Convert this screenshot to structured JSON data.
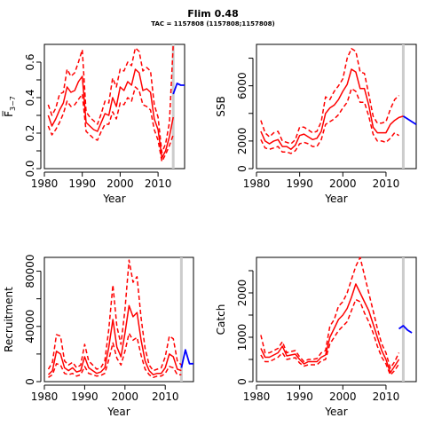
{
  "figure": {
    "title": "Flim 0.48",
    "subtitle": "TAC = 1157808 (1157808;1157808)"
  },
  "colors": {
    "estimate": "#ff0000",
    "forecast": "#0000ff",
    "marker": "#cccccc",
    "axis": "#000000"
  },
  "chart_data": [
    {
      "id": "fbar",
      "type": "line",
      "xlabel": "Year",
      "ylabel": "F̅",
      "ylabel_sub": "3−7",
      "xlim": [
        1980,
        2017
      ],
      "ylim": [
        0,
        0.7
      ],
      "xticks": [
        1980,
        1990,
        2000,
        2010
      ],
      "yticks": [
        0.0,
        0.2,
        0.4,
        0.6
      ],
      "yticklabels": [
        "0.0",
        "0.2",
        "0.4",
        "0.6"
      ],
      "yminor": [
        0.1,
        0.3,
        0.5
      ],
      "marker_x": 2014,
      "series": [
        {
          "role": "estimate",
          "style": "solid",
          "x": [
            1981,
            1982,
            1983,
            1984,
            1985,
            1986,
            1987,
            1988,
            1989,
            1990,
            1991,
            1992,
            1993,
            1994,
            1995,
            1996,
            1997,
            1998,
            1999,
            2000,
            2001,
            2002,
            2003,
            2004,
            2005,
            2006,
            2007,
            2008,
            2009,
            2010,
            2011,
            2012,
            2013,
            2014
          ],
          "y": [
            0.3,
            0.24,
            0.28,
            0.33,
            0.37,
            0.46,
            0.43,
            0.44,
            0.49,
            0.52,
            0.26,
            0.24,
            0.22,
            0.21,
            0.26,
            0.31,
            0.3,
            0.4,
            0.35,
            0.46,
            0.44,
            0.49,
            0.47,
            0.56,
            0.54,
            0.44,
            0.45,
            0.43,
            0.28,
            0.22,
            0.06,
            0.1,
            0.18,
            0.29
          ]
        },
        {
          "role": "upper",
          "style": "dashed",
          "x": [
            1981,
            1982,
            1983,
            1984,
            1985,
            1986,
            1987,
            1988,
            1989,
            1990,
            1991,
            1992,
            1993,
            1994,
            1995,
            1996,
            1997,
            1998,
            1999,
            2000,
            2001,
            2002,
            2003,
            2004,
            2005,
            2006,
            2007,
            2008,
            2009,
            2010,
            2011,
            2012,
            2013,
            2014
          ],
          "y": [
            0.36,
            0.3,
            0.34,
            0.42,
            0.43,
            0.56,
            0.52,
            0.54,
            0.6,
            0.67,
            0.32,
            0.29,
            0.27,
            0.25,
            0.31,
            0.38,
            0.37,
            0.51,
            0.46,
            0.56,
            0.55,
            0.6,
            0.58,
            0.68,
            0.66,
            0.55,
            0.57,
            0.55,
            0.36,
            0.29,
            0.09,
            0.14,
            0.26,
            0.7
          ]
        },
        {
          "role": "lower",
          "style": "dashed",
          "x": [
            1981,
            1982,
            1983,
            1984,
            1985,
            1986,
            1987,
            1988,
            1989,
            1990,
            1991,
            1992,
            1993,
            1994,
            1995,
            1996,
            1997,
            1998,
            1999,
            2000,
            2001,
            2002,
            2003,
            2004,
            2005,
            2006,
            2007,
            2008,
            2009,
            2010,
            2011,
            2012,
            2013,
            2014
          ],
          "y": [
            0.24,
            0.19,
            0.22,
            0.26,
            0.31,
            0.38,
            0.35,
            0.36,
            0.39,
            0.42,
            0.21,
            0.19,
            0.17,
            0.16,
            0.21,
            0.25,
            0.25,
            0.32,
            0.28,
            0.37,
            0.36,
            0.4,
            0.38,
            0.46,
            0.44,
            0.36,
            0.35,
            0.33,
            0.22,
            0.16,
            0.04,
            0.08,
            0.13,
            0.19
          ]
        },
        {
          "role": "forecast",
          "style": "solid",
          "x": [
            2014,
            2015,
            2016,
            2017
          ],
          "y": [
            0.42,
            0.48,
            0.47,
            0.47
          ]
        }
      ]
    },
    {
      "id": "ssb",
      "type": "line",
      "xlabel": "Year",
      "ylabel": "SSB",
      "xlim": [
        1980,
        2017
      ],
      "ylim": [
        0,
        9000
      ],
      "xticks": [
        1980,
        1990,
        2000,
        2010
      ],
      "yticks": [
        0,
        2000,
        6000
      ],
      "yticklabels": [
        "0",
        "2000",
        "6000"
      ],
      "yminor": [
        4000,
        8000
      ],
      "marker_x": 2014,
      "series": [
        {
          "role": "estimate",
          "style": "solid",
          "x": [
            1981,
            1982,
            1983,
            1984,
            1985,
            1986,
            1987,
            1988,
            1989,
            1990,
            1991,
            1992,
            1993,
            1994,
            1995,
            1996,
            1997,
            1998,
            1999,
            2000,
            2001,
            2002,
            2003,
            2004,
            2005,
            2006,
            2007,
            2008,
            2009,
            2010,
            2011,
            2012,
            2013,
            2014
          ],
          "y": [
            2700,
            2000,
            1800,
            2000,
            2100,
            1600,
            1600,
            1400,
            1700,
            2400,
            2500,
            2300,
            2100,
            2200,
            2700,
            4000,
            4400,
            4600,
            5000,
            5600,
            6100,
            7200,
            7000,
            5800,
            5800,
            4600,
            3000,
            2600,
            2600,
            2600,
            3200,
            3500,
            3700,
            3800
          ]
        },
        {
          "role": "upper",
          "style": "dashed",
          "x": [
            1981,
            1982,
            1983,
            1984,
            1985,
            1986,
            1987,
            1988,
            1989,
            1990,
            1991,
            1992,
            1993,
            1994,
            1995,
            1996,
            1997,
            1998,
            1999,
            2000,
            2001,
            2002,
            2003,
            2004,
            2005,
            2006,
            2007,
            2008,
            2009,
            2010,
            2011,
            2012,
            2013,
            2014
          ],
          "y": [
            3500,
            2600,
            2300,
            2600,
            2700,
            2000,
            1900,
            1800,
            2100,
            3000,
            3000,
            2800,
            2600,
            2700,
            3400,
            5200,
            5000,
            5600,
            6000,
            6500,
            8000,
            8700,
            8500,
            7000,
            6900,
            5400,
            3800,
            3300,
            3300,
            3400,
            4300,
            5000,
            5300,
            null
          ]
        },
        {
          "role": "lower",
          "style": "dashed",
          "x": [
            1981,
            1982,
            1983,
            1984,
            1985,
            1986,
            1987,
            1988,
            1989,
            1990,
            1991,
            1992,
            1993,
            1994,
            1995,
            1996,
            1997,
            1998,
            1999,
            2000,
            2001,
            2002,
            2003,
            2004,
            2005,
            2006,
            2007,
            2008,
            2009,
            2010,
            2011,
            2012,
            2013,
            2014
          ],
          "y": [
            2100,
            1500,
            1400,
            1500,
            1600,
            1200,
            1200,
            1100,
            1300,
            1800,
            1900,
            1800,
            1600,
            1600,
            2100,
            3200,
            3400,
            3600,
            3900,
            4400,
            4800,
            5800,
            5600,
            4800,
            4800,
            3800,
            2500,
            2000,
            2000,
            1900,
            2200,
            2600,
            2400,
            null
          ]
        },
        {
          "role": "forecast",
          "style": "solid",
          "x": [
            2014,
            2015,
            2016,
            2017
          ],
          "y": [
            3800,
            3600,
            3400,
            3200
          ]
        }
      ]
    },
    {
      "id": "recruitment",
      "type": "line",
      "xlabel": "Year",
      "ylabel": "Recruitment",
      "xlim": [
        1980,
        2017
      ],
      "ylim": [
        0,
        90000
      ],
      "xticks": [
        1980,
        1990,
        2000,
        2010
      ],
      "yticks": [
        0,
        40000,
        80000
      ],
      "yticklabels": [
        "0",
        "40000",
        "80000"
      ],
      "yminor": [
        20000,
        60000
      ],
      "marker_x": 2014,
      "series": [
        {
          "role": "estimate",
          "style": "solid",
          "x": [
            1981,
            1982,
            1983,
            1984,
            1985,
            1986,
            1987,
            1988,
            1989,
            1990,
            1991,
            1992,
            1993,
            1994,
            1995,
            1996,
            1997,
            1998,
            1999,
            2000,
            2001,
            2002,
            2003,
            2004,
            2005,
            2006,
            2007,
            2008,
            2009,
            2010,
            2011,
            2012,
            2013,
            2014
          ],
          "y": [
            5000,
            8000,
            22000,
            20000,
            10000,
            8000,
            10000,
            7000,
            8000,
            18000,
            10000,
            8000,
            6000,
            7000,
            10000,
            25000,
            45000,
            25000,
            18000,
            35000,
            55000,
            47000,
            50000,
            30000,
            15000,
            8000,
            5000,
            6000,
            6000,
            10000,
            20000,
            18000,
            9000,
            8000
          ]
        },
        {
          "role": "upper",
          "style": "dashed",
          "x": [
            1981,
            1982,
            1983,
            1984,
            1985,
            1986,
            1987,
            1988,
            1989,
            1990,
            1991,
            1992,
            1993,
            1994,
            1995,
            1996,
            1997,
            1998,
            1999,
            2000,
            2001,
            2002,
            2003,
            2004,
            2005,
            2006,
            2007,
            2008,
            2009,
            2010,
            2011,
            2012,
            2013,
            2014
          ],
          "y": [
            9000,
            14000,
            34000,
            33000,
            15000,
            12000,
            14000,
            10000,
            12000,
            27000,
            15000,
            12000,
            9000,
            10000,
            15000,
            38000,
            70000,
            40000,
            27000,
            52000,
            88000,
            72000,
            76000,
            46000,
            24000,
            12000,
            8000,
            9000,
            10000,
            18000,
            33000,
            31000,
            15000,
            12000
          ]
        },
        {
          "role": "lower",
          "style": "dashed",
          "x": [
            1981,
            1982,
            1983,
            1984,
            1985,
            1986,
            1987,
            1988,
            1989,
            1990,
            1991,
            1992,
            1993,
            1994,
            1995,
            1996,
            1997,
            1998,
            1999,
            2000,
            2001,
            2002,
            2003,
            2004,
            2005,
            2006,
            2007,
            2008,
            2009,
            2010,
            2011,
            2012,
            2013,
            2014
          ],
          "y": [
            3000,
            5000,
            13000,
            12000,
            6000,
            5000,
            6000,
            4000,
            5000,
            11000,
            6000,
            5000,
            4000,
            4500,
            6000,
            16000,
            28000,
            17000,
            12000,
            22000,
            35000,
            30000,
            32000,
            19000,
            9000,
            5000,
            3000,
            4000,
            4000,
            6000,
            11000,
            10000,
            5000,
            5000
          ]
        },
        {
          "role": "forecast",
          "style": "solid",
          "x": [
            2014,
            2015,
            2016,
            2017
          ],
          "y": [
            10000,
            23000,
            13000,
            13000
          ]
        }
      ]
    },
    {
      "id": "catch",
      "type": "line",
      "xlabel": "Year",
      "ylabel": "Catch",
      "xlim": [
        1980,
        2017
      ],
      "ylim": [
        0,
        2800
      ],
      "xticks": [
        1980,
        1990,
        2000,
        2010
      ],
      "yticks": [
        0,
        1000,
        2000
      ],
      "yticklabels": [
        "0",
        "1000",
        "2000"
      ],
      "yminor": [
        500,
        1500,
        2500
      ],
      "marker_x": 2014,
      "series": [
        {
          "role": "estimate",
          "style": "solid",
          "x": [
            1981,
            1982,
            1983,
            1984,
            1985,
            1986,
            1987,
            1988,
            1989,
            1990,
            1991,
            1992,
            1993,
            1994,
            1995,
            1996,
            1997,
            1998,
            1999,
            2000,
            2001,
            2002,
            2003,
            2004,
            2005,
            2006,
            2007,
            2008,
            2009,
            2010,
            2011,
            2012,
            2013
          ],
          "y": [
            750,
            550,
            550,
            600,
            650,
            800,
            580,
            600,
            620,
            500,
            400,
            450,
            450,
            450,
            550,
            600,
            1000,
            1200,
            1400,
            1500,
            1650,
            1900,
            2200,
            2000,
            1800,
            1600,
            1300,
            1000,
            700,
            500,
            200,
            350,
            500
          ]
        },
        {
          "role": "upper",
          "style": "dashed",
          "x": [
            1981,
            1982,
            1983,
            1984,
            1985,
            1986,
            1987,
            1988,
            1989,
            1990,
            1991,
            1992,
            1993,
            1994,
            1995,
            1996,
            1997,
            1998,
            1999,
            2000,
            2001,
            2002,
            2003,
            2004,
            2005,
            2006,
            2007,
            2008,
            2009,
            2010,
            2011,
            2012,
            2013
          ],
          "y": [
            1050,
            650,
            650,
            700,
            750,
            900,
            650,
            680,
            700,
            560,
            450,
            500,
            500,
            520,
            650,
            700,
            1250,
            1400,
            1700,
            1800,
            2000,
            2300,
            2600,
            2800,
            2400,
            2000,
            1600,
            1200,
            850,
            650,
            300,
            450,
            650
          ]
        },
        {
          "role": "lower",
          "style": "dashed",
          "x": [
            1981,
            1982,
            1983,
            1984,
            1985,
            1986,
            1987,
            1988,
            1989,
            1990,
            1991,
            1992,
            1993,
            1994,
            1995,
            1996,
            1997,
            1998,
            1999,
            2000,
            2001,
            2002,
            2003,
            2004,
            2005,
            2006,
            2007,
            2008,
            2009,
            2010,
            2011,
            2012,
            2013
          ],
          "y": [
            600,
            450,
            450,
            500,
            550,
            650,
            500,
            520,
            540,
            420,
            350,
            380,
            380,
            380,
            470,
            500,
            850,
            1000,
            1150,
            1250,
            1350,
            1600,
            1850,
            1800,
            1550,
            1350,
            1100,
            800,
            550,
            400,
            150,
            250,
            400
          ]
        },
        {
          "role": "forecast",
          "style": "solid",
          "x": [
            2013,
            2014,
            2015,
            2016
          ],
          "y": [
            1190,
            1260,
            1160,
            1100
          ]
        }
      ]
    }
  ]
}
